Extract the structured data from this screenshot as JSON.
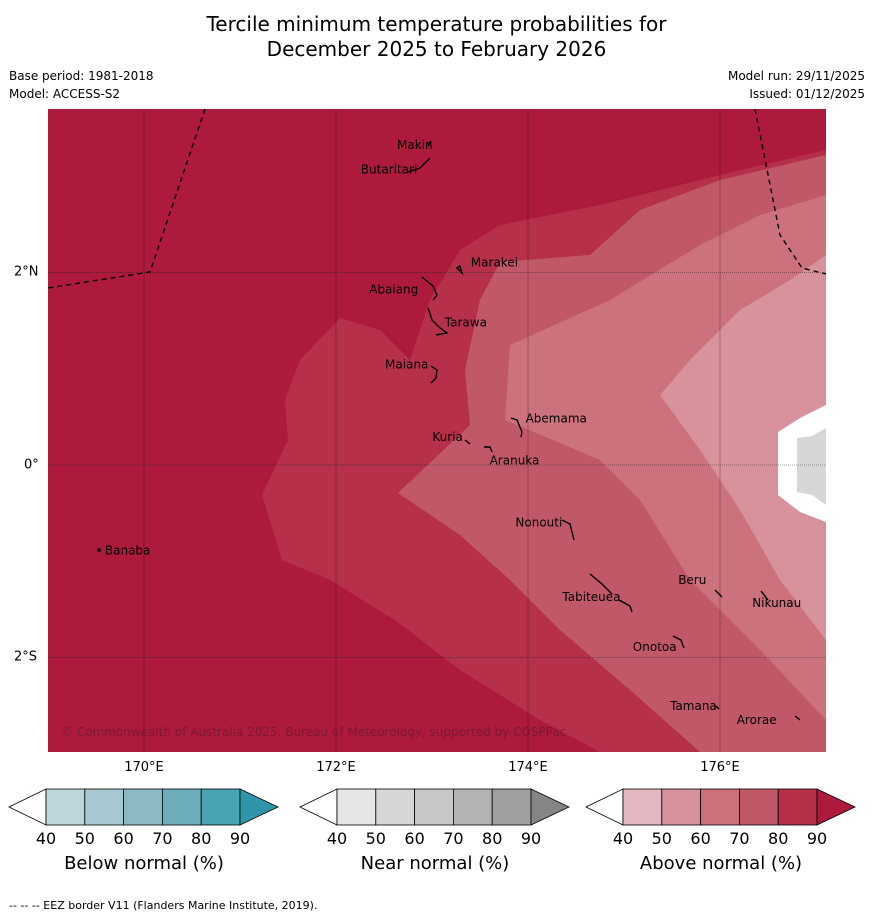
{
  "title": {
    "line1": "Tercile minimum temperature probabilities for",
    "line2": "December 2025 to February 2026"
  },
  "meta": {
    "base_period": "Base period: 1981-2018",
    "model": "Model: ACCESS-S2",
    "model_run": "Model run: 29/11/2025",
    "issued": "Issued: 01/12/2025"
  },
  "map": {
    "lon_labels": [
      "170°E",
      "172°E",
      "174°E",
      "176°E"
    ],
    "lat_labels": [
      "2°N",
      "0°",
      "2°S"
    ],
    "copyright": "© Commonwealth of Australia 2025, Bureau of Meteorology, supported by COSPPac",
    "islands": [
      {
        "name": "Makin",
        "lon": 173.0,
        "lat": 3.3
      },
      {
        "name": "Butaritari",
        "lon": 172.8,
        "lat": 3.05
      },
      {
        "name": "Marakei",
        "lon": 173.3,
        "lat": 2.0
      },
      {
        "name": "Abaiang",
        "lon": 172.95,
        "lat": 1.8
      },
      {
        "name": "Tarawa",
        "lon": 173.05,
        "lat": 1.45
      },
      {
        "name": "Maiana",
        "lon": 173.0,
        "lat": 0.95
      },
      {
        "name": "Abemama",
        "lon": 173.85,
        "lat": 0.4
      },
      {
        "name": "Kuria",
        "lon": 173.4,
        "lat": 0.22
      },
      {
        "name": "Aranuka",
        "lon": 173.6,
        "lat": 0.17
      },
      {
        "name": "Nonouti",
        "lon": 174.4,
        "lat": -0.65
      },
      {
        "name": "Tabiteuea",
        "lon": 174.9,
        "lat": -1.35
      },
      {
        "name": "Beru",
        "lon": 175.95,
        "lat": -1.3
      },
      {
        "name": "Nikunau",
        "lon": 176.45,
        "lat": -1.35
      },
      {
        "name": "Onotoa",
        "lon": 175.55,
        "lat": -1.85
      },
      {
        "name": "Tamana",
        "lon": 175.98,
        "lat": -2.5
      },
      {
        "name": "Arorae",
        "lon": 176.82,
        "lat": -2.65
      },
      {
        "name": "Banaba",
        "lon": 169.53,
        "lat": -0.88
      }
    ]
  },
  "colorbars": [
    {
      "label": "Below normal (%)",
      "ticks": [
        "40",
        "50",
        "60",
        "70",
        "80",
        "90"
      ],
      "colors": [
        "#bfd5dc",
        "#a6c8d0",
        "#8cbac4",
        "#6eadbb",
        "#4aa3b3",
        "#2f95aa"
      ]
    },
    {
      "label": "Near normal (%)",
      "ticks": [
        "40",
        "50",
        "60",
        "70",
        "80",
        "90"
      ],
      "colors": [
        "#e5e5e5",
        "#d6d6d6",
        "#c7c7c7",
        "#b3b3b3",
        "#a0a0a0",
        "#858585"
      ]
    },
    {
      "label": "Above normal (%)",
      "ticks": [
        "40",
        "50",
        "60",
        "70",
        "80",
        "90"
      ],
      "colors": [
        "#e2b7bf",
        "#d7929b",
        "#cb727d",
        "#c15868",
        "#b6304a",
        "#ad1a3b"
      ]
    }
  ],
  "footnote": "--  --  -- EEZ border V11 (Flanders Marine Institute, 2019)."
}
